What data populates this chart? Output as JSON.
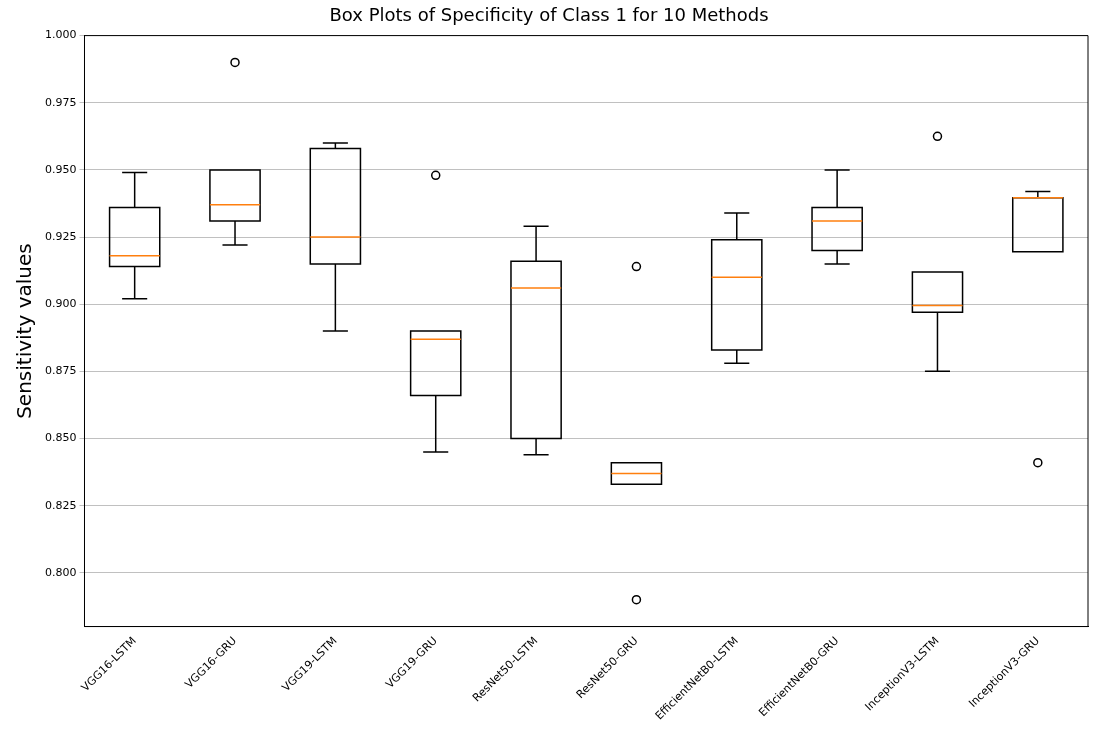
{
  "chart_data": {
    "type": "box",
    "title": "Box Plots of Specificity of Class 1 for 10 Methods",
    "ylabel": "Sensitivity values",
    "categories": [
      "VGG16-LSTM",
      "VGG16-GRU",
      "VGG19-LSTM",
      "VGG19-GRU",
      "ResNet50-LSTM",
      "ResNet50-GRU",
      "EfficientNetB0-LSTM",
      "EfficientNetB0-GRU",
      "InceptionV3-LSTM",
      "InceptionV3-GRU"
    ],
    "boxes": [
      {
        "low": 0.902,
        "q1": 0.914,
        "median": 0.918,
        "q3": 0.936,
        "high": 0.949
      },
      {
        "low": 0.922,
        "q1": 0.931,
        "median": 0.937,
        "q3": 0.95,
        "high": 0.95,
        "outliers": [
          0.99
        ]
      },
      {
        "low": 0.89,
        "q1": 0.915,
        "median": 0.925,
        "q3": 0.958,
        "high": 0.96
      },
      {
        "low": 0.845,
        "q1": 0.866,
        "median": 0.887,
        "q3": 0.89,
        "high": 0.89,
        "outliers": [
          0.948
        ]
      },
      {
        "low": 0.844,
        "q1": 0.85,
        "median": 0.906,
        "q3": 0.916,
        "high": 0.929
      },
      {
        "low": 0.833,
        "q1": 0.833,
        "median": 0.837,
        "q3": 0.841,
        "high": 0.841,
        "outliers": [
          0.914,
          0.79
        ]
      },
      {
        "low": 0.878,
        "q1": 0.883,
        "median": 0.91,
        "q3": 0.924,
        "high": 0.934
      },
      {
        "low": 0.915,
        "q1": 0.92,
        "median": 0.931,
        "q3": 0.936,
        "high": 0.95
      },
      {
        "low": 0.875,
        "q1": 0.897,
        "median": 0.8995,
        "q3": 0.912,
        "high": 0.912,
        "outliers": [
          0.9625
        ]
      },
      {
        "low": 0.9195,
        "q1": 0.9195,
        "median": 0.9396,
        "q3": 0.9396,
        "high": 0.942,
        "outliers": [
          0.841
        ]
      }
    ],
    "ylim": [
      0.78,
      1.0
    ],
    "yticks": [
      {
        "value": 0.8,
        "label": "0.800"
      },
      {
        "value": 0.825,
        "label": "0.825"
      },
      {
        "value": 0.85,
        "label": "0.850"
      },
      {
        "value": 0.875,
        "label": "0.875"
      },
      {
        "value": 0.9,
        "label": "0.900"
      },
      {
        "value": 0.925,
        "label": "0.925"
      },
      {
        "value": 0.95,
        "label": "0.950"
      },
      {
        "value": 0.975,
        "label": "0.975"
      },
      {
        "value": 1.0,
        "label": "1.000"
      }
    ],
    "grid": "y",
    "legend": false
  }
}
